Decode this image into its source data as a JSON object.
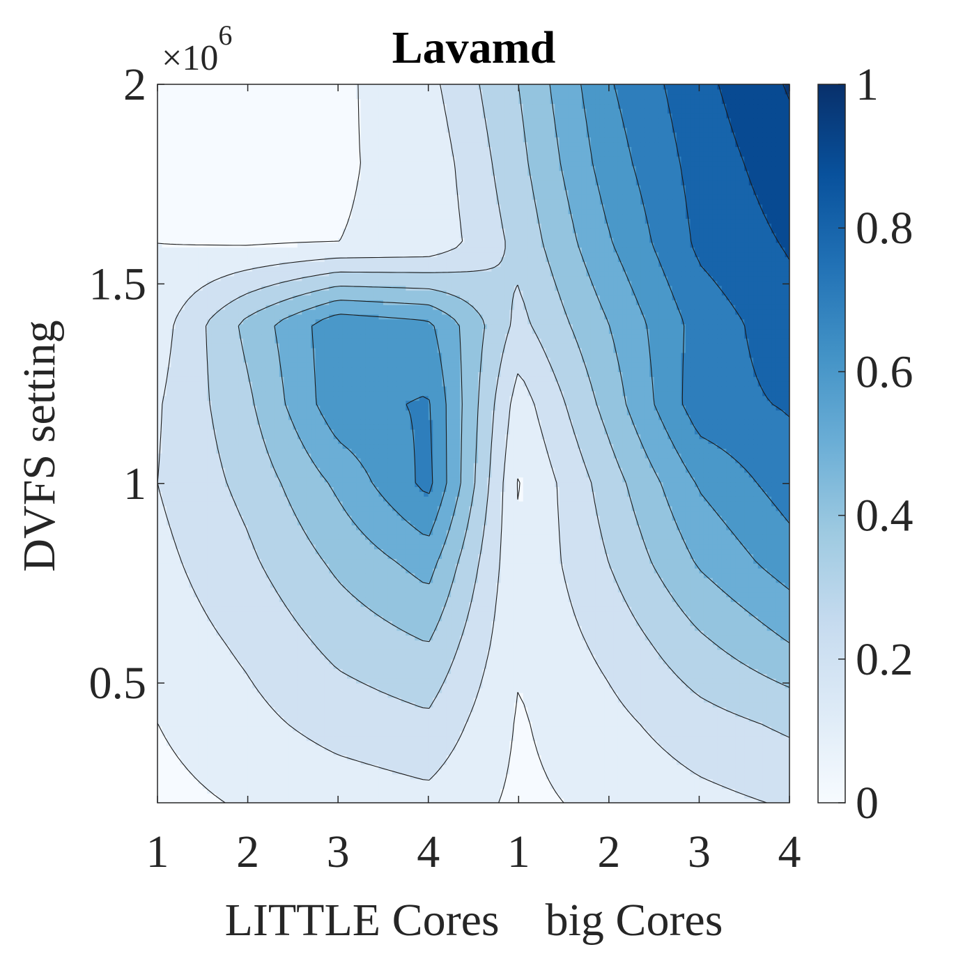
{
  "chart_data": {
    "type": "contour",
    "title": "Lavamd",
    "xlabel": "LITTLE Cores    big Cores",
    "ylabel": "DVFS setting",
    "y_exponent_label": "×10",
    "y_exponent_power": "6",
    "x_tick_labels": [
      "1",
      "2",
      "3",
      "4",
      "1",
      "2",
      "3",
      "4"
    ],
    "x_positions": [
      1,
      2,
      3,
      4,
      5,
      6,
      7,
      8
    ],
    "y_ticks": [
      0.5,
      1,
      1.5,
      2
    ],
    "y_tick_labels": [
      "0.5",
      "1",
      "1.5",
      "2"
    ],
    "ylim": [
      0.2,
      2.0
    ],
    "xlim": [
      1,
      8
    ],
    "colorbar": {
      "range": [
        0,
        1
      ],
      "ticks": [
        0,
        0.2,
        0.4,
        0.6,
        0.8,
        1
      ],
      "tick_labels": [
        "0",
        "0.2",
        "0.4",
        "0.6",
        "0.8",
        "1"
      ],
      "colormap": [
        "#f7fbff",
        "#deebf7",
        "#c6dbef",
        "#9ecae1",
        "#6baed6",
        "#4292c6",
        "#2171b5",
        "#08519c",
        "#08306b"
      ]
    },
    "contour_levels": [
      0.05,
      0.15,
      0.25,
      0.35,
      0.45,
      0.55,
      0.65,
      0.75,
      0.85,
      0.95
    ],
    "y_values": [
      0.2,
      0.4,
      0.6,
      0.8,
      1.0,
      1.2,
      1.4,
      1.6,
      1.8,
      2.0
    ],
    "z": [
      [
        0.02,
        0.06,
        0.09,
        0.12,
        0.03,
        0.07,
        0.12,
        0.16
      ],
      [
        0.05,
        0.12,
        0.19,
        0.23,
        0.04,
        0.12,
        0.21,
        0.27
      ],
      [
        0.09,
        0.17,
        0.28,
        0.35,
        0.06,
        0.18,
        0.33,
        0.45
      ],
      [
        0.12,
        0.23,
        0.37,
        0.49,
        0.06,
        0.25,
        0.46,
        0.6
      ],
      [
        0.15,
        0.28,
        0.47,
        0.68,
        0.04,
        0.3,
        0.56,
        0.7
      ],
      [
        0.14,
        0.33,
        0.62,
        0.66,
        0.1,
        0.39,
        0.71,
        0.76
      ],
      [
        0.1,
        0.38,
        0.62,
        0.57,
        0.22,
        0.45,
        0.69,
        0.81
      ],
      [
        0.05,
        0.04,
        0.05,
        0.07,
        0.28,
        0.54,
        0.77,
        0.86
      ],
      [
        0.02,
        0.03,
        0.04,
        0.08,
        0.32,
        0.6,
        0.79,
        0.91
      ],
      [
        0.02,
        0.02,
        0.03,
        0.12,
        0.35,
        0.64,
        0.82,
        0.96
      ]
    ]
  }
}
